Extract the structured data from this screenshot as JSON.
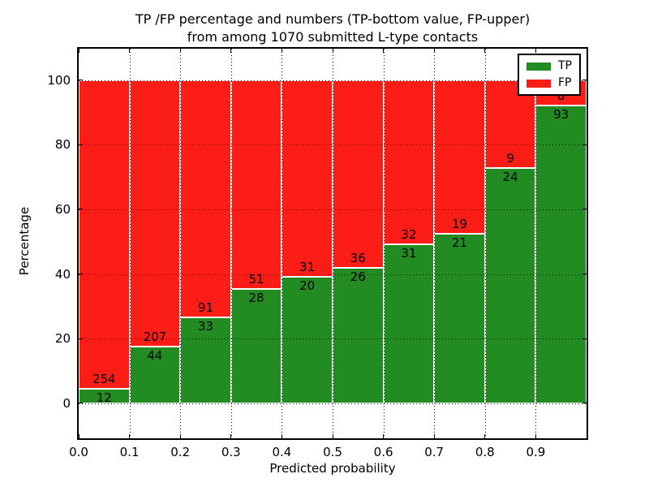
{
  "figure": {
    "title_line1": "TP /FP percentage and numbers (TP-bottom value, FP-upper)",
    "title_line2": "from among 1070 submitted L-type contacts",
    "total_submitted_contacts": "1070"
  },
  "chart_data": {
    "type": "bar",
    "subtype": "stacked-percentage",
    "title": "TP /FP percentage and numbers (TP-bottom value, FP-upper) from among 1070 submitted L-type contacts",
    "xlabel": "Predicted probability",
    "ylabel": "Percentage",
    "categories": [
      "0.0-0.1",
      "0.1-0.2",
      "0.2-0.3",
      "0.3-0.4",
      "0.4-0.5",
      "0.5-0.6",
      "0.6-0.7",
      "0.7-0.8",
      "0.8-0.9",
      "0.9-1.0"
    ],
    "series": [
      {
        "name": "TP",
        "color": "#228b22",
        "values": [
          12,
          44,
          33,
          28,
          20,
          26,
          31,
          21,
          24,
          93
        ]
      },
      {
        "name": "FP",
        "color": "#fc1d17",
        "values": [
          254,
          207,
          91,
          51,
          31,
          36,
          32,
          19,
          9,
          8
        ]
      }
    ],
    "tp_percent_of_bin": [
      4.5,
      17.5,
      26.6,
      35.4,
      39.2,
      41.9,
      49.2,
      52.5,
      72.7,
      92.1
    ],
    "x_tick_labels": [
      "0.0",
      "0.1",
      "0.2",
      "0.3",
      "0.4",
      "0.5",
      "0.6",
      "0.7",
      "0.8",
      "0.9"
    ],
    "y_ticks": [
      0,
      20,
      40,
      60,
      80,
      100
    ],
    "xlim": [
      0,
      1
    ],
    "ylim": [
      -10.8,
      109.7
    ],
    "grid": "dotted black, horizontal at y ticks and vertical at x ticks",
    "legend": {
      "position": "upper right",
      "entries": [
        {
          "label": "TP",
          "color": "#228b22"
        },
        {
          "label": "FP",
          "color": "#fc1d17"
        }
      ]
    }
  }
}
